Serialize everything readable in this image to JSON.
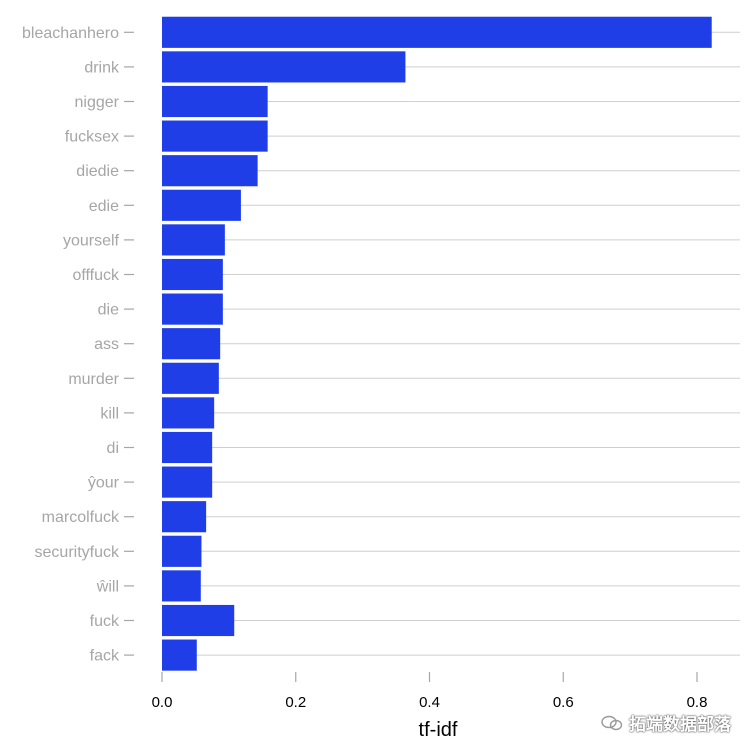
{
  "chart_data": {
    "type": "bar",
    "orientation": "horizontal",
    "categories": [
      "bleachanhero",
      "drink",
      "nigger",
      "fucksex",
      "diedie",
      "edie",
      "yourself",
      "offfuck",
      "die",
      "ass",
      "murder",
      "kill",
      "di",
      "ŷour",
      "marcolfuck",
      "securityfuck",
      "ŵill",
      "fuck",
      "fack"
    ],
    "values": [
      0.822,
      0.364,
      0.158,
      0.158,
      0.143,
      0.118,
      0.094,
      0.091,
      0.091,
      0.087,
      0.085,
      0.078,
      0.075,
      0.075,
      0.066,
      0.059,
      0.058,
      0.108,
      0.052
    ],
    "xlabel": "tf-idf",
    "ylabel": "",
    "xlim": [
      0,
      0.86
    ],
    "x_ticks": [
      "0.0",
      "0.2",
      "0.4",
      "0.6",
      "0.8"
    ],
    "x_tick_values": [
      0,
      0.2,
      0.4,
      0.6,
      0.8
    ],
    "bar_color": "#1f3ee8",
    "grid": "horizontal"
  },
  "watermark": {
    "text": "拓端数据部落",
    "icon": "wechat-icon"
  }
}
